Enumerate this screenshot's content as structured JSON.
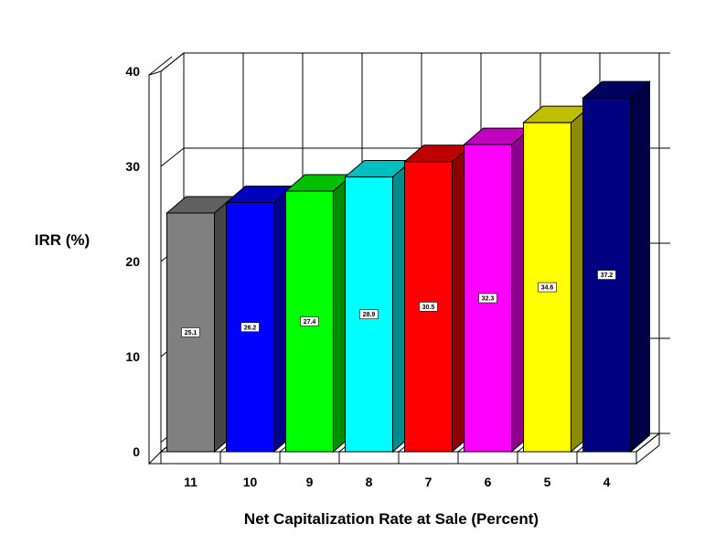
{
  "chart_data": {
    "type": "bar",
    "style": "3d",
    "title": "",
    "xlabel": "Net Capitalization Rate at Sale (Percent)",
    "ylabel": "IRR (%)",
    "ylim": [
      0,
      40
    ],
    "yticks": [
      "0",
      "10",
      "20",
      "30",
      "40"
    ],
    "grid": true,
    "legend": "none",
    "categories": [
      "11",
      "10",
      "9",
      "8",
      "7",
      "6",
      "5",
      "4"
    ],
    "values": [
      25.1,
      26.2,
      27.4,
      28.9,
      30.5,
      32.3,
      34.6,
      37.2
    ],
    "data_labels": [
      "25.1",
      "26.2",
      "27.4",
      "28.9",
      "30.5",
      "32.3",
      "34.6",
      "37.2"
    ],
    "colors": [
      "#808080",
      "#0000ff",
      "#00ff00",
      "#00ffff",
      "#ff0000",
      "#ff00ff",
      "#ffff00",
      "#000080"
    ]
  }
}
